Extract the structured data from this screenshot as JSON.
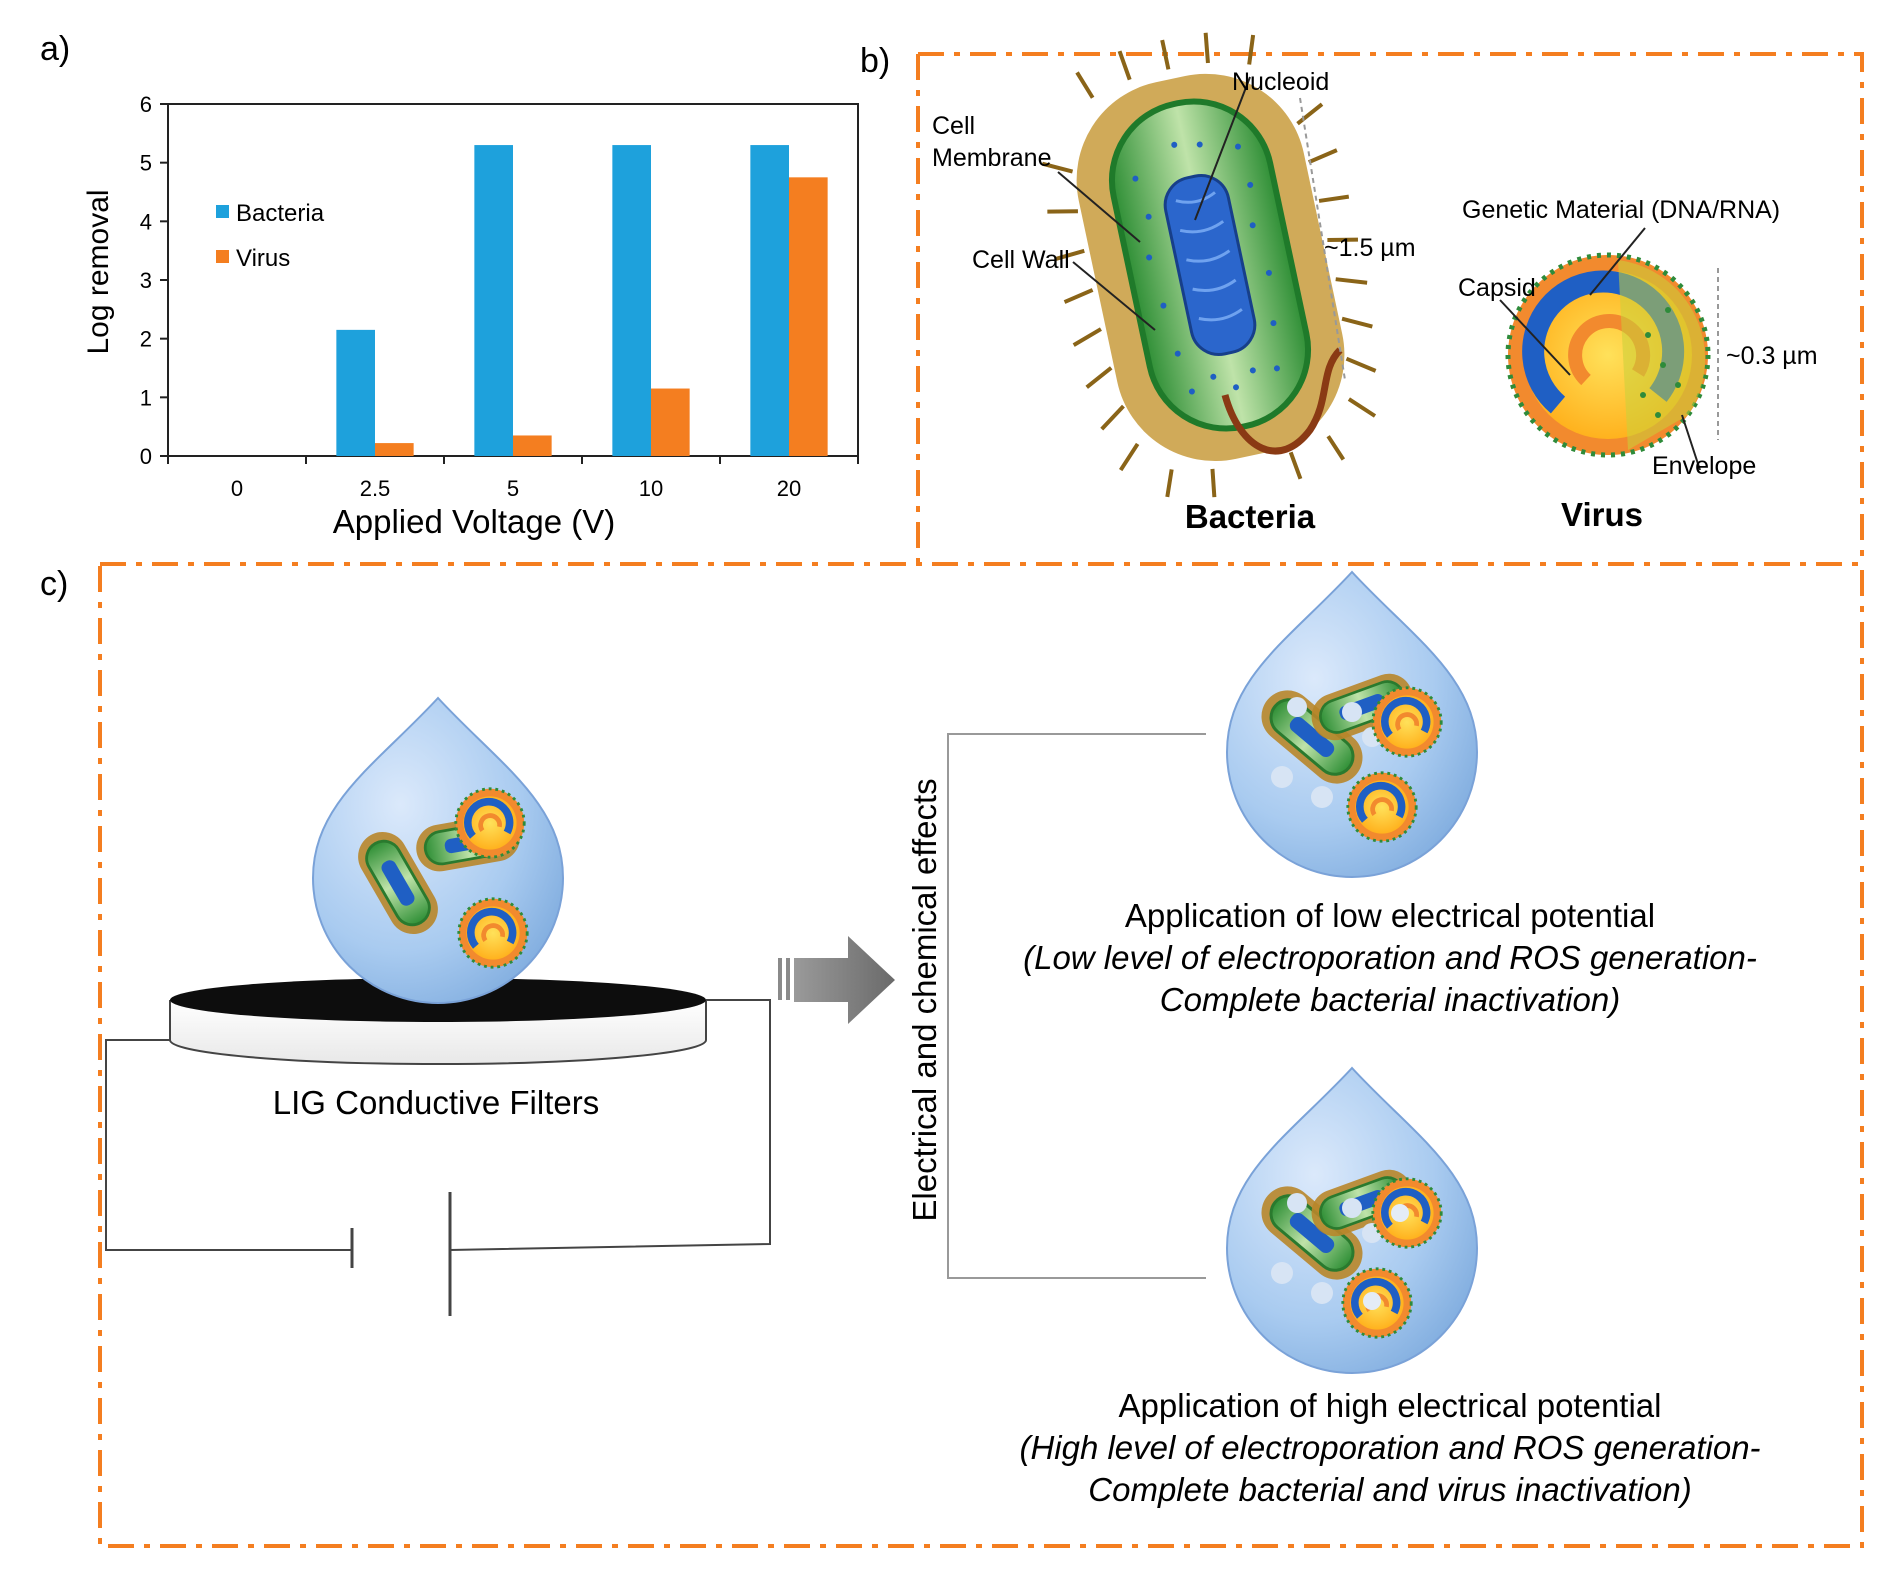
{
  "panels": {
    "a": "a)",
    "b": "b)",
    "c": "c)"
  },
  "chart_data": {
    "type": "bar",
    "categories": [
      "0",
      "2.5",
      "5",
      "10",
      "20"
    ],
    "series": [
      {
        "name": "Bacteria",
        "color": "#1ea1dc",
        "values": [
          0,
          2.15,
          5.3,
          5.3,
          5.3
        ]
      },
      {
        "name": "Virus",
        "color": "#f47e20",
        "values": [
          0,
          0.22,
          0.35,
          1.15,
          4.75
        ]
      }
    ],
    "xlabel": "Applied Voltage (V)",
    "ylabel": "Log removal",
    "ylim": [
      0,
      6
    ],
    "yticks": [
      "0",
      "1",
      "2",
      "3",
      "4",
      "5",
      "6"
    ],
    "legend": "inside-left",
    "grid": false
  },
  "panel_b": {
    "bacteria_labels": {
      "nucleoid": "Nucleoid",
      "cell_membrane_1": "Cell",
      "cell_membrane_2": "Membrane",
      "cell_wall": "Cell Wall",
      "size": "~1.5 µm",
      "title": "Bacteria"
    },
    "virus_labels": {
      "genetic_material": "Genetic Material (DNA/RNA)",
      "capsid": "Capsid",
      "size": "~0.3 µm",
      "envelope": "Envelope",
      "title": "Virus"
    }
  },
  "panel_c": {
    "filter_label": "LIG Conductive Filters",
    "effects_label": "Electrical and chemical effects",
    "low": {
      "title": "Application of low electrical potential",
      "line1": "(Low level of electroporation and ROS generation-",
      "line2": "Complete bacterial inactivation)"
    },
    "high": {
      "title": "Application of high electrical potential",
      "line1": "(High level of electroporation and ROS generation-",
      "line2": "Complete bacterial and virus inactivation)"
    }
  },
  "colors": {
    "frame": "#f47e20",
    "bacteria": "#1ea1dc",
    "virus": "#f47e20",
    "drop": "#a9cbf0",
    "wall": "#b8862a",
    "cell_green": "#3d9a3e",
    "dna_blue": "#1f5fc4",
    "virus_orange": "#f28a2e",
    "virus_yellow": "#ffd22e"
  }
}
